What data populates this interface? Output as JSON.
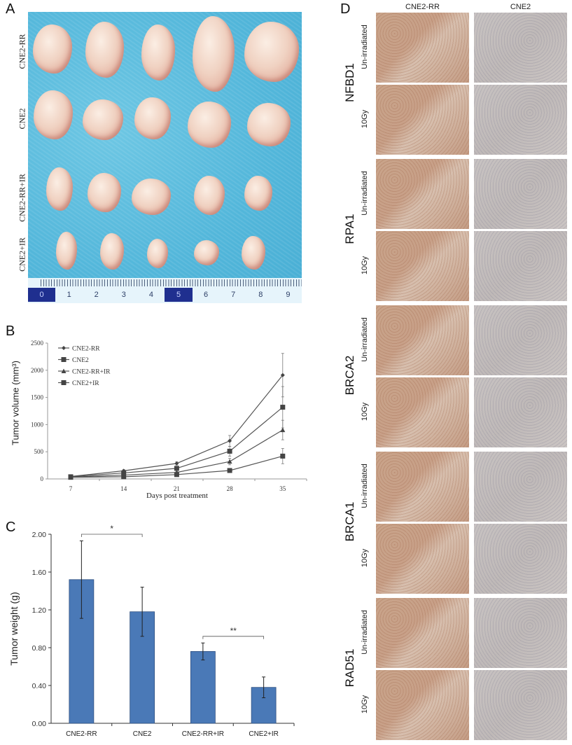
{
  "panels": {
    "A": {
      "letter": "A",
      "row_labels": [
        "CNE2-RR",
        "CNE2",
        "CNE2-RR+IR",
        "CNE2+IR"
      ],
      "ruler_numbers": [
        "0",
        "1",
        "2",
        "3",
        "4",
        "5",
        "6",
        "7",
        "8",
        "9"
      ],
      "background_color": "#52b6da"
    },
    "B": {
      "letter": "B"
    },
    "C": {
      "letter": "C"
    },
    "D": {
      "letter": "D",
      "column_headers": [
        "CNE2-RR",
        "CNE2"
      ],
      "proteins": [
        "NFBD1",
        "RPA1",
        "BRCA2",
        "BRCA1",
        "RAD51"
      ],
      "conditions": [
        "Un-irradiated",
        "10Gy"
      ]
    }
  },
  "chart_data": [
    {
      "panel": "B",
      "type": "line",
      "title": "",
      "xlabel": "Days post treatment",
      "ylabel": "Tumor volume (mm³)",
      "x": [
        7,
        14,
        21,
        28,
        35
      ],
      "x_ticks": [
        "7",
        "14",
        "21",
        "28",
        "35"
      ],
      "y_ticks": [
        "0",
        "500",
        "1000",
        "1500",
        "2000",
        "2500"
      ],
      "ylim": [
        0,
        2500
      ],
      "grid": false,
      "legend_position": "upper-left",
      "series": [
        {
          "name": "CNE2-RR",
          "marker": "diamond",
          "values": [
            45,
            150,
            285,
            700,
            1910
          ],
          "errors": [
            10,
            20,
            30,
            100,
            400
          ]
        },
        {
          "name": "CNE2",
          "marker": "square",
          "values": [
            40,
            110,
            195,
            510,
            1320
          ],
          "errors": [
            10,
            15,
            25,
            90,
            380
          ]
        },
        {
          "name": "CNE2-RR+IR",
          "marker": "triangle",
          "values": [
            35,
            70,
            120,
            320,
            900
          ],
          "errors": [
            8,
            12,
            20,
            60,
            180
          ]
        },
        {
          "name": "CNE2+IR",
          "marker": "square",
          "values": [
            30,
            40,
            80,
            155,
            420
          ],
          "errors": [
            6,
            10,
            15,
            30,
            140
          ]
        }
      ]
    },
    {
      "panel": "C",
      "type": "bar",
      "title": "",
      "xlabel": "",
      "ylabel": "Tumor weight (g)",
      "categories": [
        "CNE2-RR",
        "CNE2",
        "CNE2-RR+IR",
        "CNE2+IR"
      ],
      "values": [
        1.52,
        1.18,
        0.76,
        0.38
      ],
      "errors": [
        0.41,
        0.26,
        0.09,
        0.11
      ],
      "y_ticks": [
        "0.00",
        "0.40",
        "0.80",
        "1.20",
        "1.60",
        "2.00"
      ],
      "ylim": [
        0,
        2.0
      ],
      "bar_color": "#4a79b7",
      "grid": false,
      "annotations": [
        {
          "text": "*",
          "between": [
            "CNE2-RR",
            "CNE2"
          ]
        },
        {
          "text": "**",
          "between": [
            "CNE2-RR+IR",
            "CNE2+IR"
          ]
        }
      ]
    }
  ]
}
